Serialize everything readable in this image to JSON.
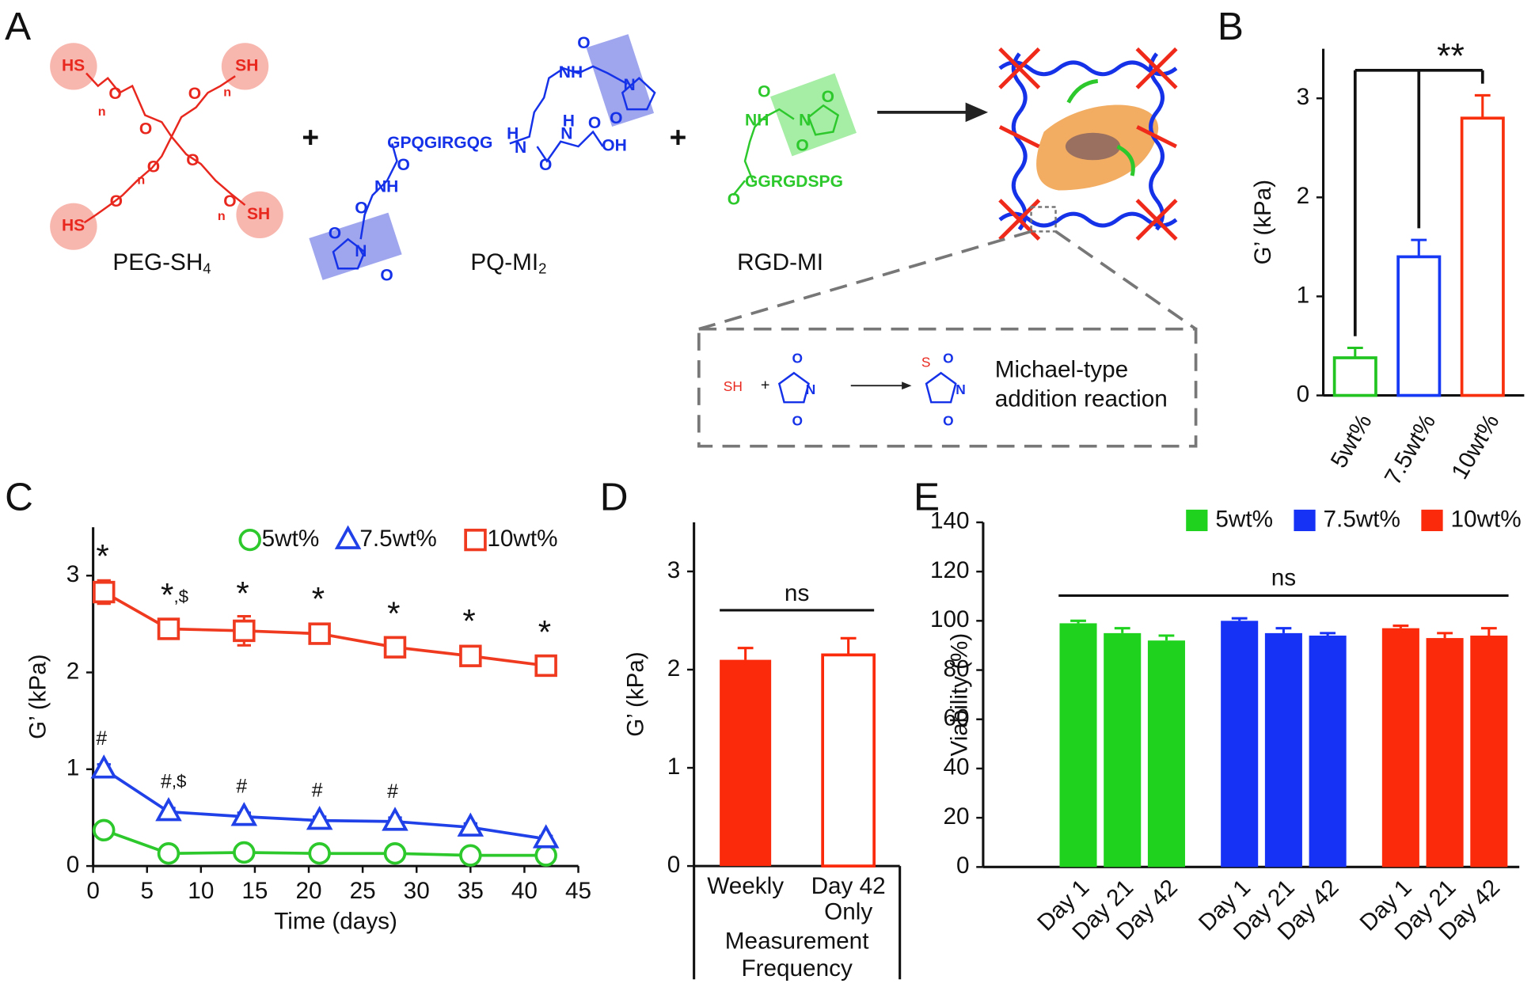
{
  "panel_labels": [
    "A",
    "B",
    "C",
    "D",
    "E"
  ],
  "diagram": {
    "peg": {
      "name": "PEG-SH",
      "sub": "4",
      "atoms": [
        "HS",
        "SH",
        "HS",
        "SH",
        "O",
        "O",
        "O",
        "O",
        "O",
        "O",
        "O",
        "n",
        "n",
        "n",
        "n"
      ]
    },
    "plus": [
      "+",
      "+"
    ],
    "pq": {
      "name": "PQ-MI",
      "sub": "2",
      "peptide": "GPQGIRGQG",
      "atoms": [
        "O",
        "NH",
        "N",
        "O",
        "N",
        "H",
        "O",
        "N",
        "H",
        "O",
        "OH",
        "O",
        "NH",
        "O",
        "N",
        "O",
        "O"
      ]
    },
    "rgd": {
      "name": "RGD-MI",
      "peptide": "GGRGDSPG",
      "atoms": [
        "O",
        "NH",
        "N",
        "O",
        "O",
        "O"
      ]
    },
    "reaction": {
      "atoms": [
        "SH",
        "+",
        "N",
        "O",
        "O",
        "S",
        "N",
        "O",
        "O"
      ],
      "text": [
        "Michael-type",
        "addition reaction"
      ]
    }
  },
  "chart_data": [
    {
      "type": "bar",
      "categories": [
        "5wt%",
        "7.5wt%",
        "10wt%"
      ],
      "values": [
        0.38,
        1.4,
        2.8
      ],
      "errors": [
        0.1,
        0.17,
        0.23
      ],
      "colors": [
        "#21c421",
        "#1639f5",
        "#f9300e"
      ],
      "filled": [
        false,
        false,
        false
      ],
      "ylabel": "G’ (kPa)",
      "ylim": [
        0,
        3.5
      ],
      "yticks": [
        0,
        1,
        2,
        3
      ],
      "significance": "**"
    },
    {
      "type": "line",
      "x": [
        1,
        7,
        14,
        21,
        28,
        35,
        42
      ],
      "xlabel": "Time (days)",
      "ylabel": "G’ (kPa)",
      "xlim": [
        0,
        45
      ],
      "xticks": [
        0,
        5,
        10,
        15,
        20,
        25,
        30,
        35,
        40,
        45
      ],
      "ylim": [
        0,
        3.5
      ],
      "yticks": [
        0,
        1,
        2,
        3
      ],
      "legend": "upper right",
      "series": [
        {
          "name": "5wt%",
          "color": "#2cc82c",
          "marker": "circle",
          "values": [
            0.37,
            0.13,
            0.14,
            0.13,
            0.13,
            0.11,
            0.11
          ]
        },
        {
          "name": "7.5wt%",
          "color": "#2040e8",
          "marker": "triangle",
          "values": [
            1.0,
            0.56,
            0.51,
            0.47,
            0.46,
            0.4,
            0.28
          ],
          "errors": [
            0.05,
            0.04,
            0.04,
            0.04,
            0.04,
            0.04,
            0.03
          ],
          "annotations": [
            "#",
            "#,$",
            "#",
            "#",
            "#",
            null,
            null
          ]
        },
        {
          "name": "10wt%",
          "color": "#f03a20",
          "marker": "square",
          "values": [
            2.83,
            2.45,
            2.43,
            2.4,
            2.26,
            2.17,
            2.07
          ],
          "errors": [
            0.12,
            0.08,
            0.15,
            0.1,
            0.08,
            0.1,
            0.07
          ],
          "annotations": [
            "*",
            "*,$",
            "*",
            "*",
            "*",
            "*",
            "*"
          ]
        }
      ]
    },
    {
      "type": "bar",
      "categories": [
        "Weekly",
        "Day 42 Only"
      ],
      "values": [
        2.1,
        2.15
      ],
      "errors": [
        0.12,
        0.17
      ],
      "colors": [
        "#fa2a0a",
        "#fa2a0a"
      ],
      "filled": [
        true,
        false
      ],
      "xlabel": "Measurement Frequency",
      "ylabel": "G’ (kPa)",
      "ylim": [
        0,
        3.5
      ],
      "yticks": [
        0,
        1,
        2,
        3
      ],
      "significance": "ns"
    },
    {
      "type": "bar",
      "categories": [
        "Day 1",
        "Day 21",
        "Day 42"
      ],
      "ylabel": "Viability (%)",
      "legend": "upper right",
      "series": [
        {
          "name": "5wt%",
          "color": "#1ed21e",
          "values": [
            99,
            95,
            92
          ],
          "errors": [
            1,
            2,
            2
          ]
        },
        {
          "name": "7.5wt%",
          "color": "#1633f5",
          "values": [
            100,
            95,
            94
          ],
          "errors": [
            1,
            2,
            1
          ]
        },
        {
          "name": "10wt%",
          "color": "#fa2a0a",
          "values": [
            97,
            93,
            94
          ],
          "errors": [
            1,
            2,
            3
          ]
        }
      ],
      "ylim": [
        0,
        140
      ],
      "yticks": [
        0,
        20,
        40,
        60,
        80,
        100,
        120,
        140
      ],
      "significance": "ns"
    }
  ]
}
